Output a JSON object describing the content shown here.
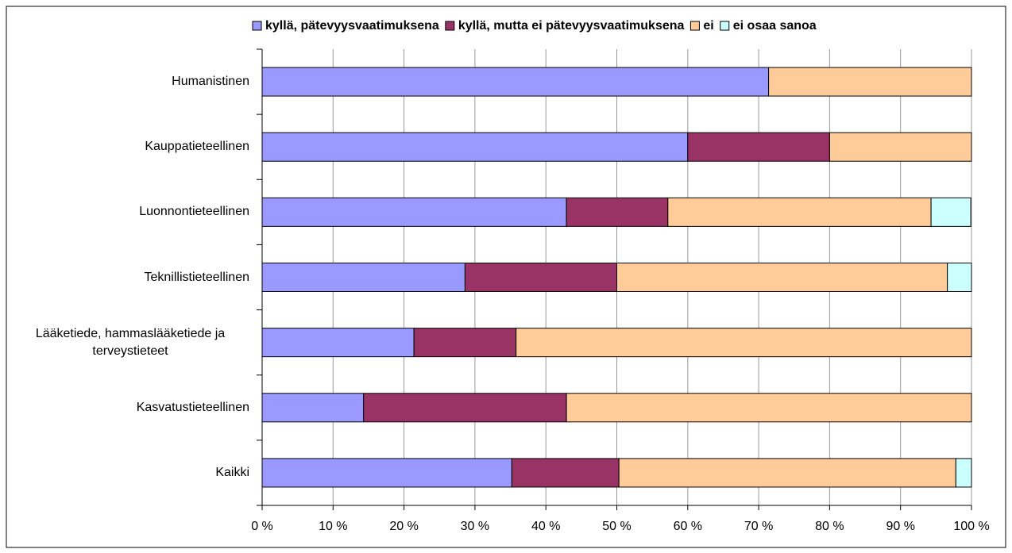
{
  "chart_data": {
    "type": "stacked_bar_horizontal",
    "categories": [
      "Humanistinen",
      "Kauppatieteellinen",
      "Luonnontieteellinen",
      "Teknillistieteellinen",
      "Lääketiede, hammaslääketiede ja terveystieteet",
      "Kasvatustieteellinen",
      "Kaikki"
    ],
    "series": [
      {
        "name": "kyllä, pätevyysvaatimuksena",
        "color": "#9999ff",
        "values": [
          71.4,
          60,
          42.9,
          28.6,
          21.4,
          14.3,
          35.2
        ]
      },
      {
        "name": "kyllä, mutta ei pätevyysvaatimuksena",
        "color": "#993366",
        "values": [
          0,
          20,
          14.3,
          21.4,
          14.4,
          28.6,
          15.1
        ]
      },
      {
        "name": "ei",
        "color": "#ffcc99",
        "values": [
          28.6,
          20,
          37.1,
          46.6,
          64.2,
          57.1,
          47.5
        ]
      },
      {
        "name": "ei osaa sanoa",
        "color": "#ccffff",
        "values": [
          0,
          0,
          5.6,
          3.4,
          0,
          0,
          2.2
        ]
      }
    ],
    "xlim": [
      0,
      100
    ],
    "xticks": [
      {
        "value": 0,
        "label": "0 %"
      },
      {
        "value": 10,
        "label": "10 %"
      },
      {
        "value": 20,
        "label": "20 %"
      },
      {
        "value": 30,
        "label": "30 %"
      },
      {
        "value": 40,
        "label": "40 %"
      },
      {
        "value": 50,
        "label": "50 %"
      },
      {
        "value": 60,
        "label": "60 %"
      },
      {
        "value": 70,
        "label": "70 %"
      },
      {
        "value": 80,
        "label": "80 %"
      },
      {
        "value": 90,
        "label": "90 %"
      },
      {
        "value": 100,
        "label": "100 %"
      }
    ],
    "grid": true,
    "legend": "top"
  }
}
